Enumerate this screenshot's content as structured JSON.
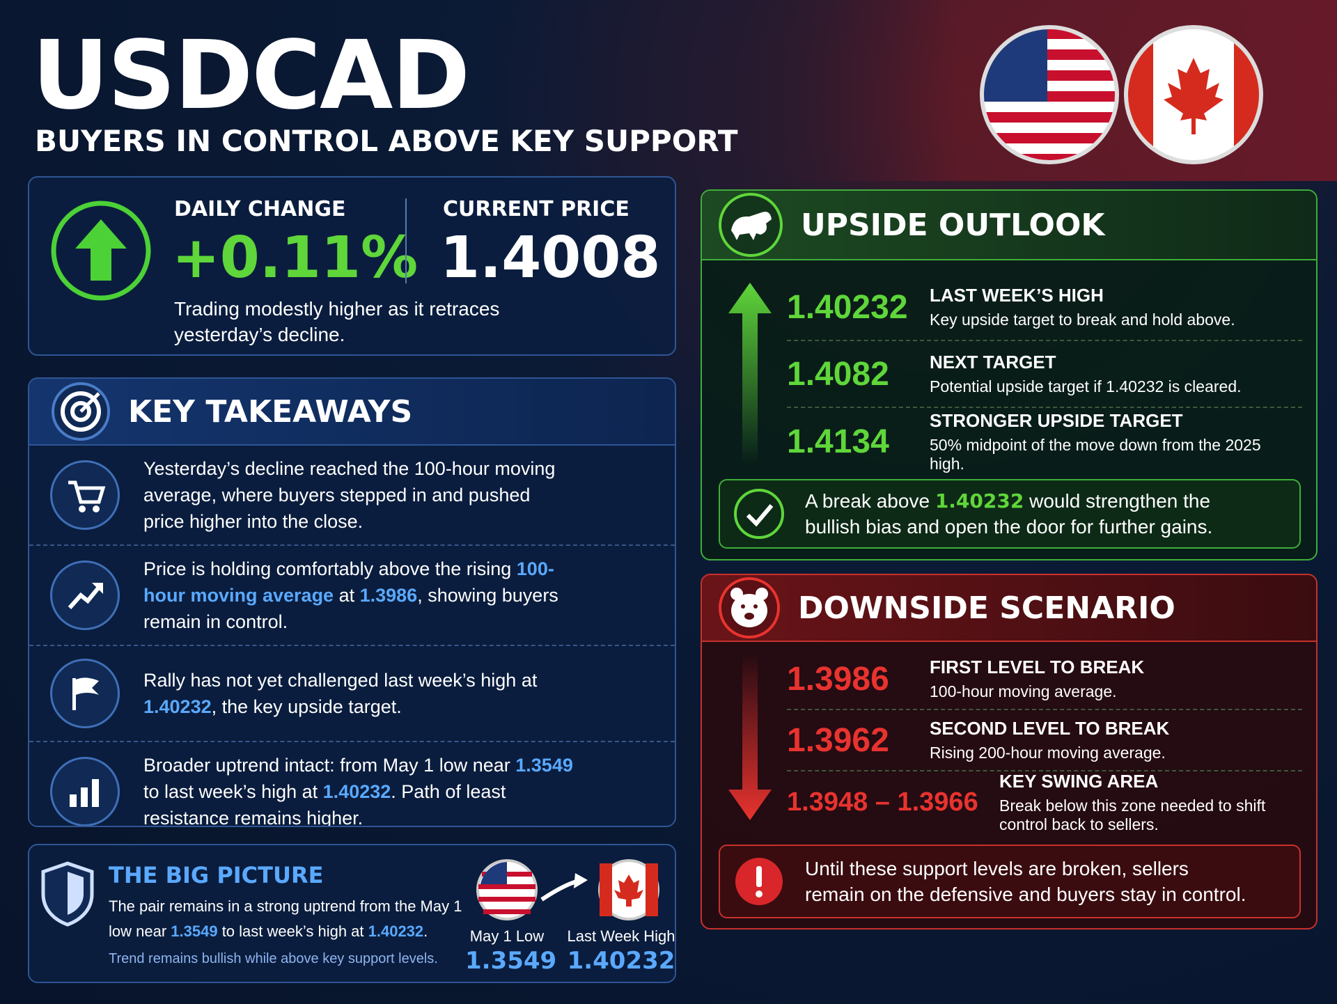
{
  "header": {
    "title": "USDCAD",
    "subtitle": "BUYERS IN CONTROL ABOVE KEY SUPPORT"
  },
  "summary": {
    "daily_change_label": "DAILY CHANGE",
    "daily_change": "+0.11%",
    "current_price_label": "CURRENT PRICE",
    "current_price": "1.4008",
    "note": "Trading modestly higher as it retraces yesterday’s decline."
  },
  "takeaways": {
    "title": "KEY TAKEAWAYS",
    "items": [
      {
        "parts": [
          "Yesterday’s decline reached the 100-hour moving average, where buyers stepped in and pushed price higher into the close."
        ]
      },
      {
        "parts": [
          "Price is holding comfortably above the rising ",
          "100-hour moving average",
          " at ",
          "1.3986",
          ", showing buyers remain in control."
        ]
      },
      {
        "parts": [
          "Rally has not yet challenged last week’s high at ",
          "1.40232",
          ", the key upside target."
        ]
      },
      {
        "parts": [
          "Broader uptrend intact: from May 1 low near ",
          "1.3549",
          " to last week’s high at ",
          "1.40232",
          ". Path of least resistance remains higher."
        ]
      }
    ]
  },
  "big_picture": {
    "title": "THE BIG PICTURE",
    "parts": [
      "The pair remains in a strong uptrend from the May 1 low near ",
      "1.3549",
      " to last week’s high at ",
      "1.40232",
      "."
    ],
    "note": "Trend remains bullish while above key support levels.",
    "from": {
      "label": "May 1 Low",
      "value": "1.3549"
    },
    "to": {
      "label": "Last Week High",
      "value": "1.40232"
    }
  },
  "upside": {
    "title": "UPSIDE OUTLOOK",
    "levels": [
      {
        "value": "1.40232",
        "label": "LAST WEEK’S HIGH",
        "desc": "Key upside target to break and hold above."
      },
      {
        "value": "1.4082",
        "label": "NEXT TARGET",
        "desc": "Potential upside target if 1.40232 is cleared."
      },
      {
        "value": "1.4134",
        "label": "STRONGER UPSIDE TARGET",
        "desc": "50% midpoint of the move down from the 2025 high."
      }
    ],
    "note_parts": [
      "A break above ",
      "1.40232",
      " would strengthen the bullish bias and open the door for further gains."
    ]
  },
  "downside": {
    "title": "DOWNSIDE SCENARIO",
    "levels": [
      {
        "value": "1.3986",
        "label": "FIRST LEVEL TO BREAK",
        "desc": "100-hour moving average."
      },
      {
        "value": "1.3962",
        "label": "SECOND LEVEL TO BREAK",
        "desc": "Rising 200-hour moving average."
      },
      {
        "value": "1.3948 – 1.3966",
        "label": "KEY SWING AREA",
        "desc": "Break below this zone needed to shift control back to sellers."
      }
    ],
    "note": "Until these support levels are broken, sellers remain on the defensive and buyers stay in control."
  }
}
